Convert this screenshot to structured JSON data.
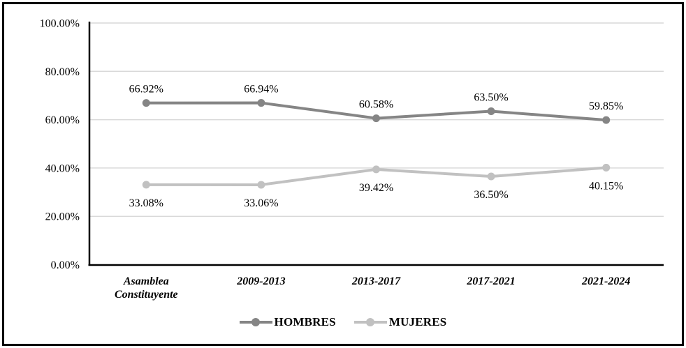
{
  "chart_data": {
    "type": "line",
    "title": "",
    "categories": [
      "Asamblea Constituyente",
      "2009-2013",
      "2013-2017",
      "2017-2021",
      "2021-2024"
    ],
    "series": [
      {
        "name": "HOMBRES",
        "color": "#858585",
        "values": [
          66.92,
          66.94,
          60.58,
          63.5,
          59.85
        ],
        "data_labels": [
          "66.92%",
          "66.94%",
          "60.58%",
          "63.50%",
          "59.85%"
        ],
        "label_position": "above"
      },
      {
        "name": "MUJERES",
        "color": "#c1c1c1",
        "values": [
          33.08,
          33.06,
          39.42,
          36.5,
          40.15
        ],
        "data_labels": [
          "33.08%",
          "33.06%",
          "39.42%",
          "36.50%",
          "40.15%"
        ],
        "label_position": "below"
      }
    ],
    "y_axis": {
      "min": 0,
      "max": 100,
      "step": 20,
      "tick_labels": [
        "0.00%",
        "20.00%",
        "40.00%",
        "60.00%",
        "80.00%",
        "100.00%"
      ]
    },
    "grid": true,
    "legend_position": "bottom"
  },
  "legend": {
    "items": [
      {
        "label": "HOMBRES",
        "color": "#858585"
      },
      {
        "label": "MUJERES",
        "color": "#c1c1c1"
      }
    ]
  },
  "colors": {
    "background": "#ffffff",
    "border": "#000000",
    "axis": "#000000",
    "gridline": "#d9d9d9",
    "text": "#000000"
  }
}
